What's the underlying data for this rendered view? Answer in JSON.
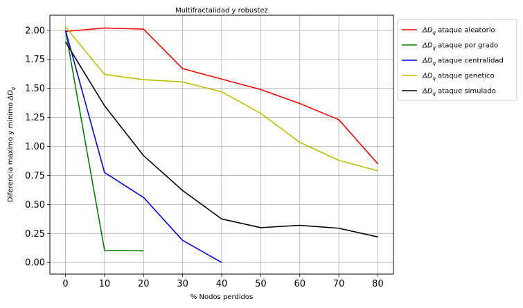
{
  "chart_data": {
    "type": "line",
    "title": "Multifractalidad y robustez",
    "xlabel": "% Nodos perdidos",
    "ylabel_prefix": "Diferencia maximo y minimo ",
    "ylabel_symbol": "ΔD",
    "ylabel_sub": "q",
    "xlim": [
      -4,
      84
    ],
    "ylim": [
      -0.1,
      2.13
    ],
    "xticks": [
      0,
      10,
      20,
      30,
      40,
      50,
      60,
      70,
      80
    ],
    "xtick_labels": [
      "0",
      "10",
      "20",
      "30",
      "40",
      "50",
      "60",
      "70",
      "80"
    ],
    "yticks": [
      0.0,
      0.25,
      0.5,
      0.75,
      1.0,
      1.25,
      1.5,
      1.75,
      2.0
    ],
    "ytick_labels": [
      "0.00",
      "0.25",
      "0.50",
      "0.75",
      "1.00",
      "1.25",
      "1.50",
      "1.75",
      "2.00"
    ],
    "grid": true,
    "legend_position": "outside-right",
    "series": [
      {
        "name_symbol": "ΔD",
        "name_sub": "q",
        "name_rest": " ataque aleatorio",
        "color": "#ff0000",
        "x": [
          0,
          10,
          20,
          30,
          40,
          50,
          60,
          70,
          80
        ],
        "y": [
          1.99,
          2.02,
          2.01,
          1.67,
          1.58,
          1.49,
          1.37,
          1.23,
          0.85
        ]
      },
      {
        "name_symbol": "ΔD",
        "name_sub": "q",
        "name_rest": " ataque por grado",
        "color": "#008000",
        "x": [
          0,
          10,
          20
        ],
        "y": [
          2.0,
          0.105,
          0.1
        ]
      },
      {
        "name_symbol": "ΔD",
        "name_sub": "q",
        "name_rest": " ataque centralidad",
        "color": "#0000ff",
        "x": [
          0,
          10,
          20,
          30,
          40
        ],
        "y": [
          2.0,
          0.775,
          0.56,
          0.19,
          0.0
        ]
      },
      {
        "name_symbol": "ΔD",
        "name_sub": "q",
        "name_rest": " ataque genetico",
        "color": "#bfbf00",
        "x": [
          0,
          10,
          20,
          30,
          40,
          50,
          60,
          70,
          80
        ],
        "y": [
          2.03,
          1.62,
          1.575,
          1.555,
          1.47,
          1.285,
          1.035,
          0.88,
          0.79
        ]
      },
      {
        "name_symbol": "ΔD",
        "name_sub": "q",
        "name_rest": " ataque simulado",
        "color": "#000000",
        "x": [
          0,
          10,
          20,
          30,
          40,
          50,
          60,
          70,
          80
        ],
        "y": [
          1.9,
          1.35,
          0.92,
          0.62,
          0.375,
          0.3,
          0.32,
          0.295,
          0.22
        ]
      }
    ]
  }
}
